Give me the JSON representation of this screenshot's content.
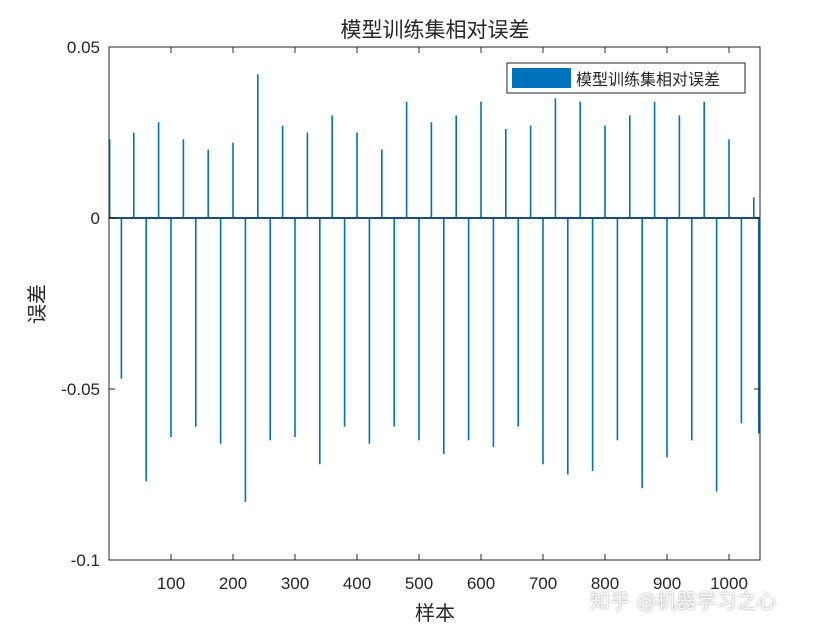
{
  "chart_data": {
    "type": "bar",
    "title": "模型训练集相对误差",
    "xlabel": "样本",
    "ylabel": "误差",
    "xlim": [
      0,
      1050
    ],
    "ylim": [
      -0.1,
      0.05
    ],
    "xticks": [
      "100",
      "200",
      "300",
      "400",
      "500",
      "600",
      "700",
      "800",
      "900",
      "1000"
    ],
    "yticks": [
      "-0.1",
      "-0.05",
      "0",
      "0.05"
    ],
    "legend": {
      "position": "top-right",
      "entries": [
        "模型训练集相对误差"
      ]
    },
    "grid": false,
    "series": [
      {
        "name": "模型训练集相对误差",
        "color": "#0072BD",
        "x": [
          1,
          20,
          40,
          60,
          80,
          100,
          120,
          140,
          160,
          180,
          200,
          220,
          240,
          260,
          280,
          300,
          320,
          340,
          360,
          380,
          400,
          420,
          440,
          460,
          480,
          500,
          520,
          540,
          560,
          580,
          600,
          620,
          640,
          660,
          680,
          700,
          720,
          740,
          760,
          780,
          800,
          820,
          840,
          860,
          880,
          900,
          920,
          940,
          960,
          980,
          1000,
          1020,
          1040,
          1048
        ],
        "values": [
          0.023,
          -0.047,
          0.025,
          -0.077,
          0.028,
          -0.064,
          0.023,
          -0.061,
          0.02,
          -0.066,
          0.022,
          -0.083,
          0.042,
          -0.065,
          0.027,
          -0.064,
          0.025,
          -0.072,
          0.03,
          -0.061,
          0.025,
          -0.066,
          0.02,
          -0.061,
          0.034,
          -0.065,
          0.028,
          -0.069,
          0.03,
          -0.065,
          0.034,
          -0.067,
          0.026,
          -0.061,
          0.027,
          -0.072,
          0.035,
          -0.075,
          0.034,
          -0.074,
          0.027,
          -0.065,
          0.03,
          -0.079,
          0.034,
          -0.07,
          0.03,
          -0.065,
          0.034,
          -0.08,
          0.023,
          -0.06,
          0.006,
          -0.063
        ]
      }
    ]
  },
  "watermark": "知乎 @机器学习之心"
}
